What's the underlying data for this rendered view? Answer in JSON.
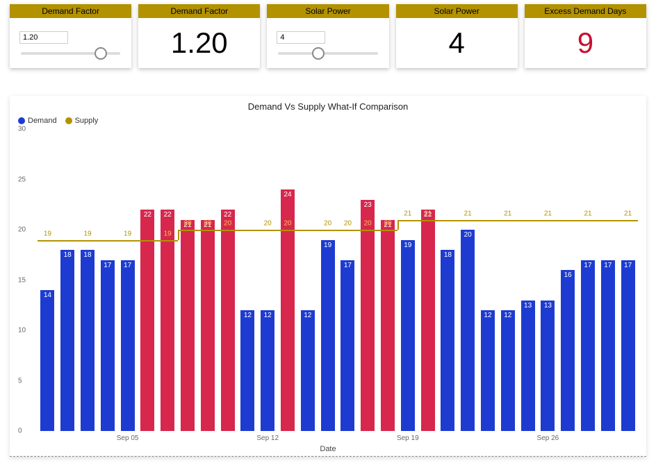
{
  "cards": {
    "demand_factor_slider": {
      "title": "Demand Factor",
      "value": "1.20",
      "thumb_pct": 80
    },
    "demand_factor_value": {
      "title": "Demand Factor",
      "value": "1.20"
    },
    "solar_slider": {
      "title": "Solar Power",
      "value": "4",
      "thumb_pct": 40
    },
    "solar_value": {
      "title": "Solar Power",
      "value": "4"
    },
    "excess_days": {
      "title": "Excess Demand Days",
      "value": "9"
    }
  },
  "chart": {
    "title": "Demand Vs Supply What-If Comparison",
    "legend": [
      {
        "label": "Demand",
        "color": "#1e3bd1"
      },
      {
        "label": "Supply",
        "color": "#b39200"
      }
    ],
    "y": {
      "min": 0,
      "max": 30,
      "ticks": [
        0,
        5,
        10,
        15,
        20,
        25,
        30
      ],
      "label_color": "#666",
      "fontsize": 10
    },
    "x": {
      "title": "Date",
      "ticks": [
        {
          "label": "Sep 05",
          "index": 4
        },
        {
          "label": "Sep 12",
          "index": 11
        },
        {
          "label": "Sep 19",
          "index": 18
        },
        {
          "label": "Sep 26",
          "index": 25
        }
      ]
    },
    "colors": {
      "bar_normal": "#1e3bd1",
      "bar_excess": "#d7274d",
      "supply_line": "#b39200",
      "bar_label": "#ffffff",
      "supply_label_normal": "#b39200",
      "supply_label_on_excess": "#ffc14d",
      "grid": "#ffffff",
      "background": "#ffffff"
    },
    "bar_width_ratio": 0.7,
    "data": [
      {
        "demand": 14,
        "supply": 19,
        "excess": false
      },
      {
        "demand": 18,
        "supply": 19,
        "excess": false
      },
      {
        "demand": 18,
        "supply": 19,
        "excess": false
      },
      {
        "demand": 17,
        "supply": 19,
        "excess": false
      },
      {
        "demand": 17,
        "supply": 19,
        "excess": false
      },
      {
        "demand": 22,
        "supply": 19,
        "excess": true
      },
      {
        "demand": 22,
        "supply": 19,
        "excess": true
      },
      {
        "demand": 21,
        "supply": 20,
        "excess": true
      },
      {
        "demand": 21,
        "supply": 20,
        "excess": true
      },
      {
        "demand": 22,
        "supply": 20,
        "excess": true
      },
      {
        "demand": 12,
        "supply": 20,
        "excess": false
      },
      {
        "demand": 12,
        "supply": 20,
        "excess": false
      },
      {
        "demand": 24,
        "supply": 20,
        "excess": true
      },
      {
        "demand": 12,
        "supply": 20,
        "excess": false
      },
      {
        "demand": 19,
        "supply": 20,
        "excess": false
      },
      {
        "demand": 17,
        "supply": 20,
        "excess": false
      },
      {
        "demand": 23,
        "supply": 20,
        "excess": true
      },
      {
        "demand": 21,
        "supply": 20,
        "excess": true
      },
      {
        "demand": 19,
        "supply": 21,
        "excess": false
      },
      {
        "demand": 22,
        "supply": 21,
        "excess": true
      },
      {
        "demand": 18,
        "supply": 21,
        "excess": false
      },
      {
        "demand": 20,
        "supply": 21,
        "excess": false
      },
      {
        "demand": 12,
        "supply": 21,
        "excess": false
      },
      {
        "demand": 12,
        "supply": 21,
        "excess": false
      },
      {
        "demand": 13,
        "supply": 21,
        "excess": false
      },
      {
        "demand": 13,
        "supply": 21,
        "excess": false
      },
      {
        "demand": 16,
        "supply": 21,
        "excess": false
      },
      {
        "demand": 17,
        "supply": 21,
        "excess": false
      },
      {
        "demand": 17,
        "supply": 21,
        "excess": false
      },
      {
        "demand": 17,
        "supply": 21,
        "excess": false
      }
    ],
    "supply_label_indices": [
      0,
      2,
      4,
      6,
      7,
      8,
      9,
      11,
      12,
      14,
      15,
      16,
      17,
      18,
      19,
      21,
      23,
      25,
      27,
      29
    ]
  }
}
